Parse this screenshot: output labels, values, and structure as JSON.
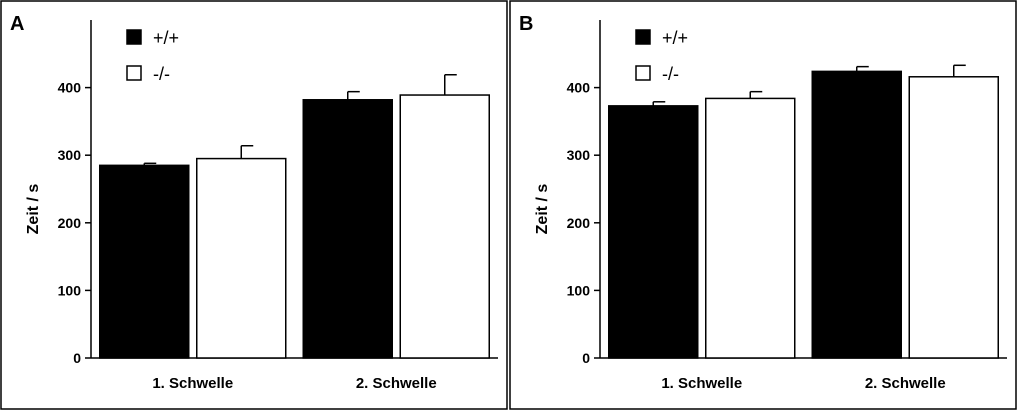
{
  "figure": {
    "panels": [
      {
        "letter": "A"
      },
      {
        "letter": "B"
      }
    ]
  },
  "chart_data": [
    {
      "type": "bar",
      "panel": "A",
      "title": "",
      "xlabel": "",
      "ylabel": "Zeit / s",
      "categories": [
        "1. Schwelle",
        "2. Schwelle"
      ],
      "series": [
        {
          "name": "+/+",
          "values": [
            285,
            382
          ],
          "errors": [
            3,
            12
          ],
          "fill": "#000000"
        },
        {
          "name": "-/-",
          "values": [
            295,
            389
          ],
          "errors": [
            19,
            30
          ],
          "fill": "#ffffff"
        }
      ],
      "ylim": [
        0,
        500
      ],
      "yticks": [
        0,
        100,
        200,
        300,
        400
      ],
      "legend": "top-left",
      "grid": false
    },
    {
      "type": "bar",
      "panel": "B",
      "title": "",
      "xlabel": "",
      "ylabel": "Zeit / s",
      "categories": [
        "1. Schwelle",
        "2. Schwelle"
      ],
      "series": [
        {
          "name": "+/+",
          "values": [
            373,
            424
          ],
          "errors": [
            6,
            7
          ],
          "fill": "#000000"
        },
        {
          "name": "-/-",
          "values": [
            384,
            416
          ],
          "errors": [
            10,
            17
          ],
          "fill": "#ffffff"
        }
      ],
      "ylim": [
        0,
        500
      ],
      "yticks": [
        0,
        100,
        200,
        300,
        400
      ],
      "legend": "top-left",
      "grid": false
    }
  ]
}
